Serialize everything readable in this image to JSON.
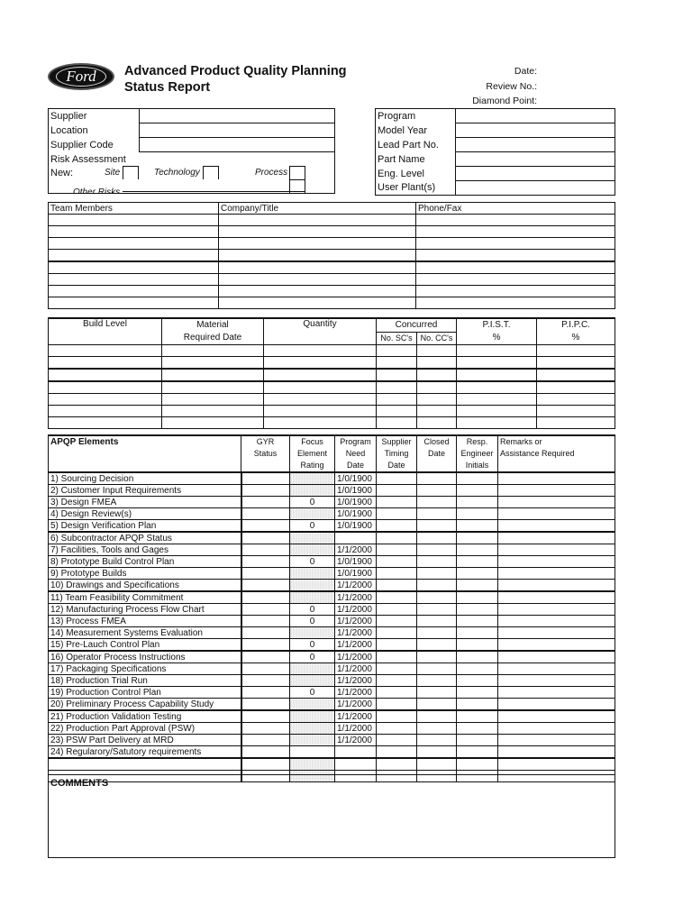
{
  "header": {
    "logo_text": "Ford",
    "title_line1": "Advanced Product Quality Planning",
    "title_line2": "Status Report",
    "date_label": "Date:",
    "review_label": "Review No.:",
    "diamond_label": "Diamond Point:"
  },
  "supplier_box": {
    "supplier": "Supplier",
    "location": "Location",
    "supplier_code": "Supplier Code",
    "risk": "Risk Assessment",
    "new": "New:",
    "site": "Site",
    "technology": "Technology",
    "process": "Process",
    "other_risks": "Other Risks"
  },
  "program_box": [
    "Program",
    "Model Year",
    "Lead Part No.",
    "Part Name",
    "Eng. Level",
    "User Plant(s)"
  ],
  "team": {
    "headers": [
      "Team Members",
      "Company/Title",
      "Phone/Fax"
    ]
  },
  "build": {
    "build_level": "Build Level",
    "material1": "Material",
    "material2": "Required Date",
    "quantity": "Quantity",
    "concurred": "Concurred",
    "sc": "No. SC's",
    "cc": "No. CC's",
    "pist": "P.I.S.T.",
    "pipc": "P.I.P.C.",
    "pct": "%"
  },
  "apqp": {
    "headers": [
      "APQP Elements",
      "GYR\nStatus",
      "Focus\nElement\nRating",
      "Program\nNeed\nDate",
      "Supplier\nTiming\nDate",
      "Closed\nDate",
      "Resp.\nEngineer\nInitials",
      "Remarks or\nAssistance Required"
    ],
    "rows": [
      [
        "1) Sourcing Decision",
        "",
        "1/0/1900"
      ],
      [
        "2) Customer Input Requirements",
        "",
        "1/0/1900"
      ],
      [
        "3) Design FMEA",
        "0",
        "1/0/1900"
      ],
      [
        "4) Design Review(s)",
        "",
        "1/0/1900"
      ],
      [
        "5) Design Verification Plan",
        "0",
        "1/0/1900"
      ],
      [
        "6) Subcontractor APQP Status",
        "",
        ""
      ],
      [
        "7) Facilities, Tools and Gages",
        "",
        "1/1/2000"
      ],
      [
        "8) Prototype Build Control Plan",
        "0",
        "1/0/1900"
      ],
      [
        "9) Prototype Builds",
        "",
        "1/0/1900"
      ],
      [
        "10) Drawings and Specifications",
        "",
        "1/1/2000"
      ],
      [
        "11) Team Feasibility Commitment",
        "",
        "1/1/2000"
      ],
      [
        "12) Manufacturing Process Flow Chart",
        "0",
        "1/1/2000"
      ],
      [
        "13) Process FMEA",
        "0",
        "1/1/2000"
      ],
      [
        "14) Measurement Systems Evaluation",
        "",
        "1/1/2000"
      ],
      [
        "15) Pre-Lauch Control Plan",
        "0",
        "1/1/2000"
      ],
      [
        "16) Operator Process Instructions",
        "0",
        "1/1/2000"
      ],
      [
        "17) Packaging Specifications",
        "",
        "1/1/2000"
      ],
      [
        "18) Production Trial Run",
        "",
        "1/1/2000"
      ],
      [
        "19) Production Control Plan",
        "0",
        "1/1/2000"
      ],
      [
        "20) Preliminary Process Capability Study",
        "",
        "1/1/2000"
      ],
      [
        "21) Production Validation Testing",
        "",
        "1/1/2000"
      ],
      [
        "22) Production Part Approval (PSW)",
        "",
        "1/1/2000"
      ],
      [
        "23) PSW Part Delivery at MRD",
        "",
        "1/1/2000"
      ],
      [
        "24) Regularory/Satutory requirements",
        "",
        ""
      ]
    ]
  },
  "comments": {
    "label": "COMMENTS"
  }
}
